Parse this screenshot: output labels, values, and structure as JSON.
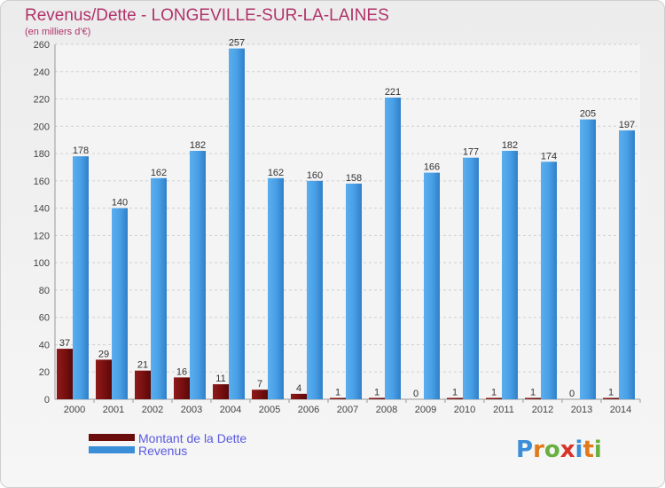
{
  "chart_data": {
    "type": "bar",
    "title": "Revenus/Dette - LONGEVILLE-SUR-LA-LAINES",
    "subtitle": "(en milliers d'€)",
    "categories": [
      "2000",
      "2001",
      "2002",
      "2003",
      "2004",
      "2005",
      "2006",
      "2007",
      "2008",
      "2009",
      "2010",
      "2011",
      "2012",
      "2013",
      "2014"
    ],
    "series": [
      {
        "name": "Montant de la Dette",
        "color": "#7a1010",
        "values": [
          37,
          29,
          21,
          16,
          11,
          7,
          4,
          1,
          1,
          0,
          1,
          1,
          1,
          0,
          1
        ]
      },
      {
        "name": "Revenus",
        "color": "#3a8ed8",
        "values": [
          178,
          140,
          162,
          182,
          257,
          162,
          160,
          158,
          221,
          166,
          177,
          182,
          174,
          205,
          197
        ]
      }
    ],
    "ylim": [
      0,
      260
    ],
    "yticks": [
      0,
      20,
      40,
      60,
      80,
      100,
      120,
      140,
      160,
      180,
      200,
      220,
      240,
      260
    ],
    "grid": true,
    "legend_position": "bottom-left"
  },
  "logo": {
    "text": "Proxiti",
    "letters": [
      "P",
      "r",
      "o",
      "x",
      "i",
      "t",
      "i"
    ]
  }
}
